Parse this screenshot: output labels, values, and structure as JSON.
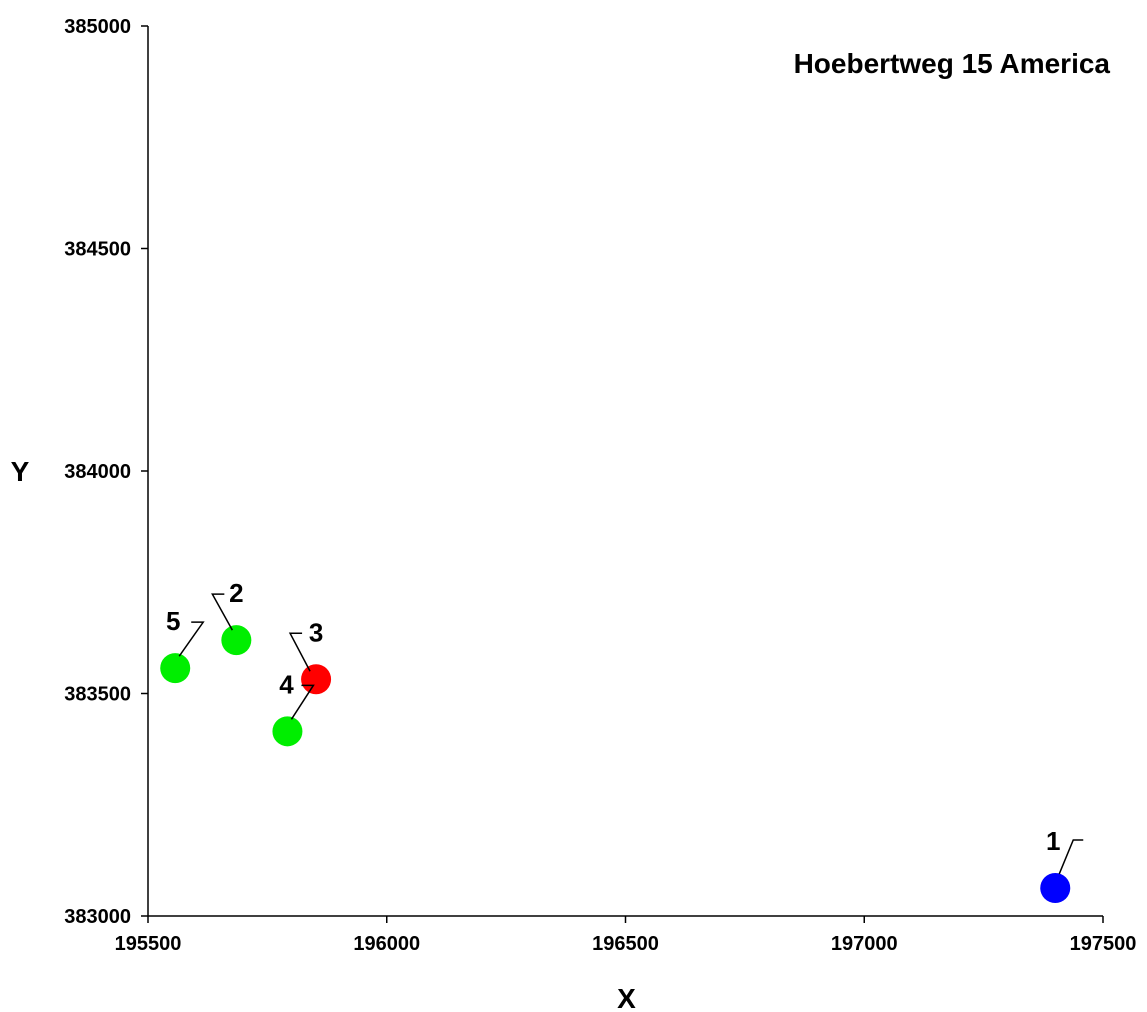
{
  "chart_data": {
    "type": "scatter",
    "title": "Hoebertweg 15 America",
    "xlabel": "X",
    "ylabel": "Y",
    "xlim": [
      195500,
      197500
    ],
    "ylim": [
      383000,
      385000
    ],
    "x_ticks": [
      195500,
      196000,
      196500,
      197000,
      197500
    ],
    "y_ticks": [
      383000,
      383500,
      384000,
      384500,
      385000
    ],
    "x_tick_labels": [
      "195500",
      "196000",
      "196500",
      "197000",
      "197500"
    ],
    "y_tick_labels": [
      "383000",
      "383500",
      "384000",
      "384500",
      "385000"
    ],
    "grid": false,
    "points": [
      {
        "label": "1",
        "x": 197400,
        "y": 383063,
        "color": "#0000ff"
      },
      {
        "label": "2",
        "x": 195685,
        "y": 383620,
        "color": "#00ee00"
      },
      {
        "label": "3",
        "x": 195852,
        "y": 383532,
        "color": "#ff0000"
      },
      {
        "label": "4",
        "x": 195792,
        "y": 383415,
        "color": "#00ee00"
      },
      {
        "label": "5",
        "x": 195557,
        "y": 383557,
        "color": "#00ee00"
      }
    ]
  }
}
